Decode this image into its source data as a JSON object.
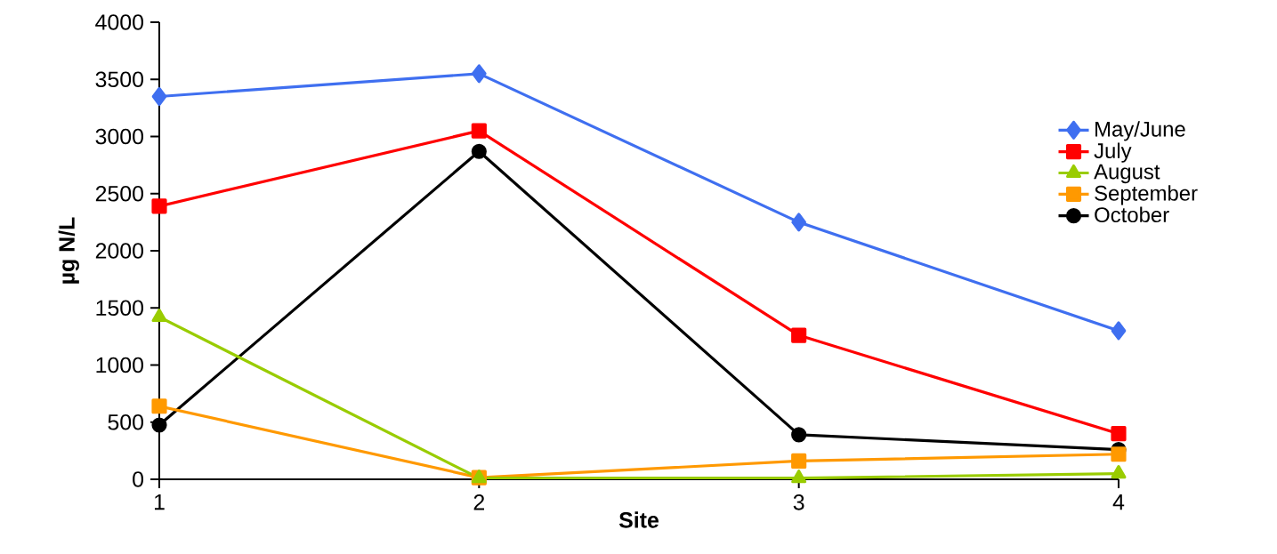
{
  "chart_data": {
    "type": "line",
    "xlabel": "Site",
    "ylabel": "µg N/L",
    "categories": [
      "1",
      "2",
      "3",
      "4"
    ],
    "ylim": [
      0,
      4000
    ],
    "yticks": [
      0,
      500,
      1000,
      1500,
      2000,
      2500,
      3000,
      3500,
      4000
    ],
    "grid": false,
    "legend": "right",
    "line_style": "solid",
    "series": [
      {
        "name": "May/June",
        "color": "#3f6ff0",
        "marker": "diamond",
        "values": [
          3350,
          3550,
          2250,
          1300
        ]
      },
      {
        "name": "July",
        "color": "#ff0000",
        "marker": "square",
        "values": [
          2390,
          3050,
          1260,
          400
        ]
      },
      {
        "name": "August",
        "color": "#99cc00",
        "marker": "triangle",
        "values": [
          1420,
          10,
          10,
          50
        ]
      },
      {
        "name": "September",
        "color": "#ff9900",
        "marker": "square",
        "values": [
          640,
          15,
          160,
          220
        ]
      },
      {
        "name": "October",
        "color": "#000000",
        "marker": "circle",
        "values": [
          475,
          2870,
          390,
          260
        ]
      }
    ]
  }
}
